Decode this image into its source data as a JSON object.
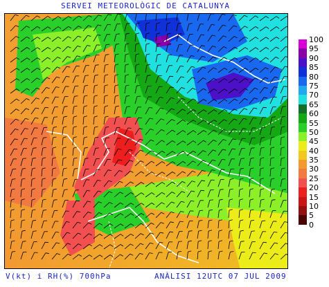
{
  "header": {
    "title": "SERVEI METEOROLÒGIC DE CATALUNYA"
  },
  "footer": {
    "variable": "V(kt) i RH(%) 700hPa",
    "analysis": "ANÀLISI 12UTC 07 JUL 2009"
  },
  "legend": {
    "colors": [
      "#d800d8",
      "#8a00a8",
      "#4c10c8",
      "#1030d8",
      "#1868f0",
      "#20a8f0",
      "#20e0e0",
      "#12702a",
      "#14a814",
      "#2ad02a",
      "#8cf028",
      "#ecec18",
      "#f2c820",
      "#f29a30",
      "#f27a40",
      "#f25050",
      "#ec1e1e",
      "#c81414",
      "#941010",
      "#4a0404"
    ],
    "labels": [
      "100",
      "95",
      "90",
      "85",
      "80",
      "75",
      "70",
      "65",
      "60",
      "55",
      "50",
      "45",
      "40",
      "35",
      "30",
      "25",
      "20",
      "15",
      "10",
      "5",
      "0"
    ]
  },
  "map": {
    "icons": {
      "wind_barbs": "wind-barb-icon",
      "coastlines": "coastline-icon",
      "borders": "border-icon"
    }
  }
}
